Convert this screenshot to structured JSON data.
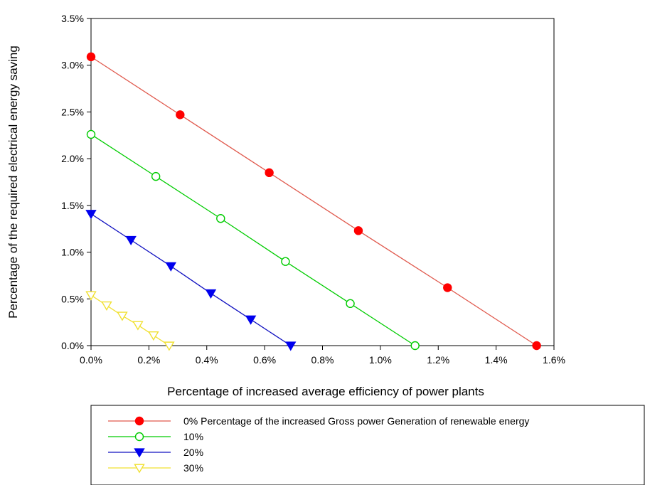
{
  "chart_data": {
    "type": "line",
    "title": "",
    "xlabel": "Percentage of increased average efficiency of power plants",
    "ylabel": "Percentage of the required electrical energy saving",
    "xlim": [
      0,
      1.6
    ],
    "ylim": [
      0,
      3.5
    ],
    "x_ticks": [
      "0.0%",
      "0.2%",
      "0.4%",
      "0.6%",
      "0.8%",
      "1.0%",
      "1.2%",
      "1.4%",
      "1.6%"
    ],
    "y_ticks": [
      "0.0%",
      "0.5%",
      "1.0%",
      "1.5%",
      "2.0%",
      "2.5%",
      "3.0%",
      "3.5%"
    ],
    "grid": false,
    "legend_position": "bottom",
    "series": [
      {
        "name": "0% Percentage of the increased Gross power Generation of renewable energy",
        "color": "#e05a4e",
        "marker": "circle-filled",
        "marker_color": "#ff0000",
        "x": [
          0.0,
          0.308,
          0.616,
          0.924,
          1.232,
          1.54
        ],
        "y": [
          3.09,
          2.47,
          1.85,
          1.23,
          0.62,
          0.0
        ]
      },
      {
        "name": "10%",
        "color": "#00cc00",
        "marker": "circle-open",
        "marker_color": "#00cc00",
        "x": [
          0.0,
          0.224,
          0.448,
          0.672,
          0.896,
          1.12
        ],
        "y": [
          2.26,
          1.81,
          1.36,
          0.9,
          0.45,
          0.0
        ]
      },
      {
        "name": "20%",
        "color": "#1010c0",
        "marker": "triangle-down-filled",
        "marker_color": "#0000ee",
        "x": [
          0.0,
          0.138,
          0.276,
          0.414,
          0.552,
          0.69
        ],
        "y": [
          1.41,
          1.13,
          0.85,
          0.56,
          0.28,
          0.0
        ]
      },
      {
        "name": "30%",
        "color": "#f0e030",
        "marker": "triangle-down-open",
        "marker_color": "#f0e030",
        "x": [
          0.0,
          0.054,
          0.108,
          0.162,
          0.216,
          0.27
        ],
        "y": [
          0.54,
          0.43,
          0.32,
          0.22,
          0.11,
          0.0
        ]
      }
    ]
  }
}
